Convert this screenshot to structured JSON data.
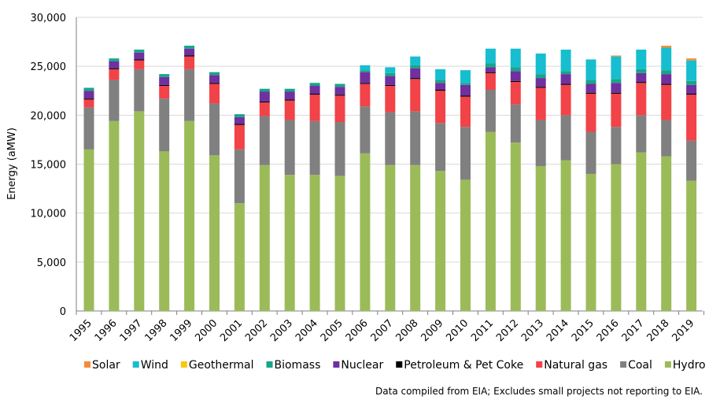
{
  "chart_data": {
    "type": "bar",
    "stacked": true,
    "ylabel": "Energy (aMW)",
    "ylim": [
      0,
      30000
    ],
    "yticks": [
      0,
      5000,
      10000,
      15000,
      20000,
      25000,
      30000
    ],
    "ytick_labels": [
      "0",
      "5,000",
      "10,000",
      "15,000",
      "20,000",
      "25,000",
      "30,000"
    ],
    "grid": true,
    "legend_position": "bottom",
    "note": "Data compiled from EIA; Excludes small projects not reporting to EIA.",
    "categories": [
      "1995",
      "1996",
      "1997",
      "1998",
      "1999",
      "2000",
      "2001",
      "2002",
      "2003",
      "2004",
      "2005",
      "2006",
      "2007",
      "2008",
      "2009",
      "2010",
      "2011",
      "2012",
      "2013",
      "2014",
      "2015",
      "2016",
      "2017",
      "2018",
      "2019"
    ],
    "series": [
      {
        "name": "Hydro",
        "color": "#9BBB59",
        "values": [
          16500,
          19400,
          20400,
          16300,
          19400,
          15900,
          11000,
          14900,
          13900,
          13900,
          13800,
          16100,
          14900,
          14900,
          14300,
          13400,
          18300,
          17200,
          14800,
          15400,
          14000,
          15000,
          16200,
          15800,
          13300
        ]
      },
      {
        "name": "Coal",
        "color": "#808080",
        "values": [
          4300,
          4200,
          4300,
          5400,
          5300,
          5300,
          5500,
          5000,
          5600,
          5500,
          5500,
          4800,
          5400,
          5500,
          4900,
          5400,
          4300,
          3900,
          4700,
          4600,
          4300,
          3800,
          3800,
          3700,
          4100
        ]
      },
      {
        "name": "Natural gas",
        "color": "#F14348",
        "values": [
          800,
          1100,
          900,
          1300,
          1300,
          2000,
          2500,
          1400,
          2000,
          2700,
          2700,
          2300,
          2700,
          3300,
          3300,
          3100,
          1700,
          2300,
          3300,
          3100,
          3900,
          3400,
          3300,
          3600,
          4700
        ]
      },
      {
        "name": "Petroleum & Pet Coke",
        "color": "#000000",
        "values": [
          100,
          100,
          100,
          100,
          100,
          100,
          100,
          100,
          100,
          100,
          100,
          100,
          100,
          100,
          100,
          100,
          100,
          100,
          100,
          100,
          100,
          100,
          100,
          100,
          100
        ]
      },
      {
        "name": "Nuclear",
        "color": "#7030A0",
        "values": [
          800,
          700,
          700,
          800,
          700,
          800,
          700,
          1000,
          800,
          800,
          800,
          1100,
          900,
          1000,
          700,
          1100,
          500,
          1000,
          900,
          1000,
          900,
          1000,
          900,
          1000,
          900
        ]
      },
      {
        "name": "Biomass",
        "color": "#17A589",
        "values": [
          300,
          300,
          300,
          300,
          300,
          300,
          300,
          300,
          300,
          300,
          300,
          200,
          300,
          300,
          300,
          200,
          400,
          400,
          400,
          300,
          400,
          400,
          400,
          400,
          400
        ]
      },
      {
        "name": "Geothermal",
        "color": "#F9C812",
        "values": [
          0,
          0,
          0,
          0,
          0,
          0,
          0,
          0,
          0,
          0,
          0,
          0,
          0,
          0,
          0,
          0,
          0,
          0,
          0,
          0,
          0,
          0,
          0,
          0,
          0
        ]
      },
      {
        "name": "Wind",
        "color": "#17BECF",
        "values": [
          0,
          0,
          0,
          0,
          0,
          0,
          0,
          0,
          0,
          0,
          0,
          500,
          600,
          900,
          1100,
          1300,
          1500,
          1900,
          2100,
          2200,
          2100,
          2300,
          2000,
          2300,
          2100
        ]
      },
      {
        "name": "Solar",
        "color": "#F58A3A",
        "values": [
          0,
          0,
          0,
          0,
          0,
          0,
          0,
          0,
          0,
          0,
          0,
          0,
          0,
          0,
          0,
          0,
          0,
          0,
          0,
          0,
          0,
          100,
          0,
          200,
          200
        ]
      }
    ],
    "legend_order": [
      "Solar",
      "Wind",
      "Geothermal",
      "Biomass",
      "Nuclear",
      "Petroleum & Pet Coke",
      "Natural gas",
      "Coal",
      "Hydro"
    ]
  }
}
